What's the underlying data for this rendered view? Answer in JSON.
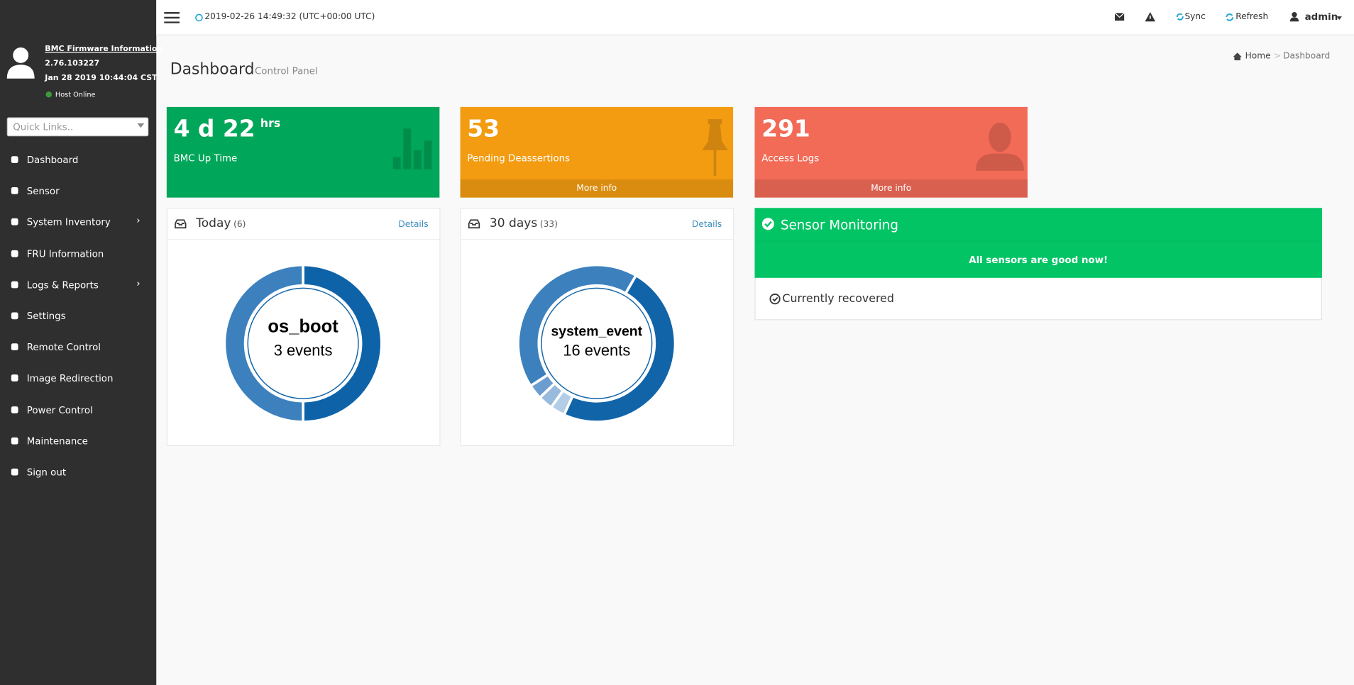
{
  "header": {
    "datetime": "2019-02-26 14:49:32 (UTC+00:00 UTC)",
    "sync": "Sync",
    "refresh": "Refresh",
    "user": "admin"
  },
  "sidebar": {
    "firmware_title": "BMC Firmware Information",
    "version": "2.76.103227",
    "build_date": "Jan 28 2019 10:44:04 CST",
    "host_status": "Host Online",
    "quick_links": "Quick Links..",
    "menu": [
      "Dashboard",
      "Sensor",
      "System Inventory",
      "FRU Information",
      "Logs & Reports",
      "Settings",
      "Remote Control",
      "Image Redirection",
      "Power Control",
      "Maintenance",
      "Sign out"
    ]
  },
  "content": {
    "title": "Dashboard",
    "subtitle": "Control Panel",
    "breadcrumb": [
      "Home",
      "Dashboard"
    ],
    "stat_boxes": [
      {
        "value": "4 d 22",
        "unit": "hrs",
        "label": "BMC Up Time",
        "color": "#00a65a"
      },
      {
        "value": "53",
        "label": "Pending Deassertions",
        "link": "More info",
        "color": "#f39c12"
      },
      {
        "value": "291",
        "label": "Access Logs",
        "link": "More info",
        "color": "#f26b57"
      }
    ],
    "event_panels": [
      {
        "title": "Today",
        "count": "(6)",
        "details": "Details",
        "center_name": "os_boot",
        "center_label": "3 events",
        "segments": [
          3,
          3
        ],
        "colors": [
          "#0e63a8",
          "#3c81bd"
        ]
      },
      {
        "title": "30 days",
        "count": "(33)",
        "details": "Details",
        "center_name": "system_event",
        "center_label": "16 events",
        "segments": [
          16,
          1,
          1,
          1,
          14
        ],
        "colors": [
          "#1264a8",
          "#b3cde6",
          "#98badc",
          "#6b9ecf",
          "#3c80bd"
        ]
      }
    ],
    "sensor_panel": {
      "title": "Sensor Monitoring",
      "status": "All sensors are good now!",
      "note": "Currently recovered"
    }
  }
}
